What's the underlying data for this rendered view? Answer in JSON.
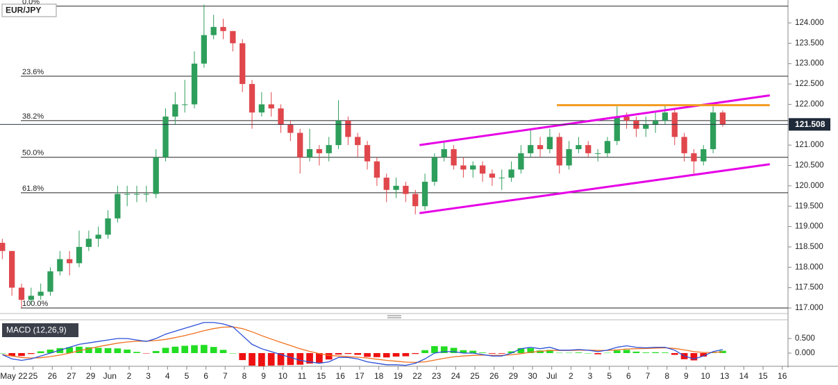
{
  "chart_data": [
    {
      "type": "candlestick",
      "title": "EUR/JPY",
      "x": [
        -0.6,
        -0.1,
        0.4,
        0.9,
        1.4,
        1.9,
        2.4,
        2.9,
        3.4,
        3.9,
        4.4,
        4.9,
        5.4,
        5.9,
        6.4,
        6.9,
        7.4,
        7.9,
        8.4,
        8.9,
        9.4,
        9.9,
        10.4,
        10.9,
        11.4,
        11.9,
        12.4,
        12.9,
        13.4,
        13.9,
        14.4,
        14.9,
        15.4,
        15.9,
        16.4,
        16.9,
        17.4,
        17.9,
        18.4,
        18.9,
        19.4,
        19.9,
        20.4,
        20.9,
        21.4,
        21.9,
        22.4,
        22.9,
        23.4,
        23.9,
        24.4,
        24.9,
        25.4,
        25.9,
        26.4,
        26.9,
        27.4,
        27.9,
        28.4,
        28.9,
        29.4,
        29.9,
        30.4,
        30.9,
        31.4,
        31.9,
        32.4,
        32.9,
        33.4,
        33.9,
        34.4,
        34.9,
        35.4,
        35.9,
        36.4,
        36.9
      ],
      "open": [
        118.6,
        118.4,
        117.5,
        117.2,
        117.3,
        117.4,
        117.9,
        118.2,
        118.1,
        118.5,
        118.7,
        118.8,
        119.2,
        119.8,
        119.8,
        119.8,
        119.8,
        120.7,
        121.7,
        122.0,
        122.0,
        123.0,
        123.7,
        123.9,
        123.8,
        123.5,
        122.5,
        121.8,
        122.0,
        121.9,
        121.5,
        121.3,
        120.7,
        120.9,
        120.8,
        121.0,
        121.6,
        121.2,
        121.0,
        120.6,
        120.2,
        119.9,
        120.0,
        119.8,
        119.5,
        120.1,
        120.7,
        120.9,
        120.5,
        120.4,
        120.5,
        120.3,
        120.2,
        120.2,
        120.4,
        120.8,
        121.0,
        120.9,
        121.2,
        120.5,
        120.9,
        121.0,
        120.8,
        120.8,
        121.1,
        121.7,
        121.6,
        121.4,
        121.5,
        121.6,
        121.8,
        121.2,
        120.8,
        120.6,
        120.9,
        121.8
      ],
      "high": [
        118.7,
        118.4,
        117.6,
        117.5,
        117.6,
        118.0,
        118.4,
        118.4,
        118.9,
        118.9,
        119.0,
        119.4,
        120.0,
        120.0,
        120.0,
        120.0,
        120.9,
        121.9,
        122.3,
        122.6,
        123.3,
        124.45,
        124.2,
        124.1,
        123.8,
        123.6,
        122.6,
        122.3,
        122.3,
        122.0,
        121.6,
        121.4,
        121.4,
        121.0,
        121.2,
        122.1,
        121.7,
        121.3,
        121.1,
        120.7,
        120.3,
        120.2,
        120.1,
        119.9,
        120.3,
        120.8,
        121.1,
        121.0,
        120.7,
        120.6,
        120.6,
        120.4,
        120.4,
        120.6,
        121.0,
        121.4,
        121.2,
        121.4,
        121.3,
        121.1,
        121.2,
        121.1,
        120.9,
        121.2,
        121.95,
        121.8,
        121.7,
        121.7,
        121.8,
        121.98,
        121.9,
        121.3,
        120.9,
        121.0,
        121.95,
        121.85
      ],
      "low": [
        118.2,
        117.3,
        117.0,
        117.1,
        117.2,
        117.3,
        117.8,
        117.8,
        118.0,
        118.4,
        118.5,
        118.7,
        119.1,
        119.5,
        119.6,
        119.6,
        119.7,
        120.6,
        121.5,
        121.8,
        121.9,
        122.9,
        123.6,
        123.6,
        123.3,
        122.3,
        121.4,
        121.7,
        121.7,
        121.3,
        121.1,
        120.3,
        120.6,
        120.5,
        120.6,
        120.9,
        121.0,
        120.7,
        120.4,
        120.0,
        119.6,
        119.7,
        119.6,
        119.3,
        119.4,
        120.0,
        120.6,
        120.4,
        120.2,
        120.2,
        120.1,
        120.0,
        119.9,
        120.1,
        120.3,
        120.7,
        120.7,
        120.8,
        120.3,
        120.4,
        120.8,
        120.7,
        120.6,
        120.7,
        121.0,
        121.4,
        121.2,
        121.2,
        121.3,
        121.5,
        121.0,
        120.6,
        120.3,
        120.5,
        120.8,
        121.45
      ],
      "close": [
        118.4,
        117.5,
        117.2,
        117.3,
        117.4,
        117.9,
        118.2,
        118.1,
        118.5,
        118.7,
        118.8,
        119.2,
        119.8,
        119.8,
        119.8,
        119.8,
        120.7,
        121.7,
        122.0,
        122.0,
        123.0,
        123.7,
        123.9,
        123.8,
        123.5,
        122.5,
        121.8,
        122.0,
        121.9,
        121.5,
        121.3,
        120.7,
        120.9,
        120.8,
        121.0,
        121.6,
        121.2,
        121.0,
        120.6,
        120.2,
        119.9,
        120.0,
        119.8,
        119.5,
        120.1,
        120.7,
        120.9,
        120.5,
        120.4,
        120.5,
        120.3,
        120.2,
        120.2,
        120.4,
        120.8,
        121.0,
        120.9,
        121.2,
        120.5,
        120.9,
        121.0,
        120.8,
        120.8,
        121.1,
        121.7,
        121.6,
        121.4,
        121.5,
        121.6,
        121.8,
        121.2,
        120.8,
        120.6,
        120.9,
        121.8,
        121.508
      ],
      "up_color": "#2e9e5b",
      "down_color": "#e0474c",
      "xlim": [
        -0.72,
        40.3
      ],
      "xticks": [
        {
          "value": 0,
          "label": "May 22"
        },
        {
          "value": 1,
          "label": "25"
        },
        {
          "value": 2,
          "label": "26"
        },
        {
          "value": 3,
          "label": "27"
        },
        {
          "value": 4,
          "label": "29"
        },
        {
          "value": 5,
          "label": "Jun"
        },
        {
          "value": 6,
          "label": "2"
        },
        {
          "value": 7,
          "label": "3"
        },
        {
          "value": 8,
          "label": "4"
        },
        {
          "value": 9,
          "label": "5"
        },
        {
          "value": 10,
          "label": "6"
        },
        {
          "value": 11,
          "label": "7"
        },
        {
          "value": 12,
          "label": "8"
        },
        {
          "value": 13,
          "label": "9"
        },
        {
          "value": 14,
          "label": "10"
        },
        {
          "value": 15,
          "label": "11"
        },
        {
          "value": 16,
          "label": "15"
        },
        {
          "value": 17,
          "label": "16"
        },
        {
          "value": 18,
          "label": "17"
        },
        {
          "value": 19,
          "label": "18"
        },
        {
          "value": 20,
          "label": "19"
        },
        {
          "value": 21,
          "label": "22"
        },
        {
          "value": 22,
          "label": "23"
        },
        {
          "value": 23,
          "label": "24"
        },
        {
          "value": 24,
          "label": "25"
        },
        {
          "value": 25,
          "label": "26"
        },
        {
          "value": 26,
          "label": "29"
        },
        {
          "value": 27,
          "label": "30"
        },
        {
          "value": 28,
          "label": "Jul"
        },
        {
          "value": 29,
          "label": "2"
        },
        {
          "value": 30,
          "label": "3"
        },
        {
          "value": 31,
          "label": "5"
        },
        {
          "value": 32,
          "label": "6"
        },
        {
          "value": 33,
          "label": "7"
        },
        {
          "value": 34,
          "label": "8"
        },
        {
          "value": 35,
          "label": "9"
        },
        {
          "value": 36,
          "label": "10"
        },
        {
          "value": 37,
          "label": "13"
        },
        {
          "value": 38,
          "label": "14"
        },
        {
          "value": 39,
          "label": "15"
        },
        {
          "value": 40,
          "label": "16"
        }
      ],
      "ylim": [
        116.864,
        124.562
      ],
      "yticks": [
        {
          "value": 117,
          "label": "117.000"
        },
        {
          "value": 117.5,
          "label": "117.500"
        },
        {
          "value": 118,
          "label": "118.000"
        },
        {
          "value": 118.5,
          "label": "118.500"
        },
        {
          "value": 119,
          "label": "119.000"
        },
        {
          "value": 119.5,
          "label": "119.500"
        },
        {
          "value": 120,
          "label": "120.000"
        },
        {
          "value": 120.5,
          "label": "120.500"
        },
        {
          "value": 121,
          "label": "121.000"
        },
        {
          "value": 121.5,
          "label": "121.500"
        },
        {
          "value": 122,
          "label": "122.000"
        },
        {
          "value": 122.5,
          "label": "122.500"
        },
        {
          "value": 123,
          "label": "123.000"
        },
        {
          "value": 123.5,
          "label": "123.500"
        },
        {
          "value": 124,
          "label": "124.000"
        }
      ],
      "fibonacci": [
        {
          "value": 124.41,
          "label": "0.0%"
        },
        {
          "value": 122.69,
          "label": "23.6%"
        },
        {
          "value": 121.6,
          "label": "38.2%"
        },
        {
          "value": 120.7,
          "label": "50.0%"
        },
        {
          "value": 119.83,
          "label": "61.8%"
        },
        {
          "value": 117.0,
          "label": "100.0%"
        }
      ],
      "trendlines": [
        {
          "color": "#e600e6",
          "x": [
            21.12,
            39.35
          ],
          "y": [
            121.0,
            122.22
          ]
        },
        {
          "color": "#e600e6",
          "x": [
            21.12,
            39.35
          ],
          "y": [
            119.33,
            120.53
          ]
        },
        {
          "color": "#f29a1f",
          "x": [
            28.27,
            39.35
          ],
          "y": [
            121.98,
            121.98
          ]
        }
      ]
    },
    {
      "type": "macd",
      "title": "MACD (12,26,9)",
      "ylim": [
        -0.429,
        1.119
      ],
      "yticks": [
        {
          "value": 0.5,
          "label": "0.500"
        },
        {
          "value": 0,
          "label": "0.000"
        }
      ],
      "macd": {
        "color": "#2b4fd8",
        "values": [
          -0.05,
          -0.2,
          -0.25,
          -0.2,
          -0.1,
          0,
          0.1,
          0.2,
          0.3,
          0.35,
          0.4,
          0.45,
          0.5,
          0.5,
          0.45,
          0.4,
          0.5,
          0.65,
          0.75,
          0.85,
          0.95,
          1.05,
          1.05,
          1.0,
          0.9,
          0.6,
          0.3,
          0.15,
          0.05,
          -0.05,
          -0.15,
          -0.25,
          -0.3,
          -0.35,
          -0.3,
          -0.15,
          -0.15,
          -0.2,
          -0.3,
          -0.35,
          -0.4,
          -0.4,
          -0.42,
          -0.35,
          -0.2,
          0,
          0.05,
          0.05,
          0,
          0,
          -0.05,
          -0.1,
          -0.1,
          0,
          0.15,
          0.2,
          0.15,
          0.2,
          0.1,
          0.1,
          0.12,
          0.1,
          0.05,
          0.1,
          0.2,
          0.25,
          0.2,
          0.18,
          0.2,
          0.2,
          0.1,
          -0.1,
          -0.2,
          -0.1,
          0.05,
          0.12
        ]
      },
      "signal": {
        "color": "#f0701e",
        "values": [
          -0.05,
          -0.1,
          -0.15,
          -0.17,
          -0.16,
          -0.12,
          -0.07,
          0,
          0.08,
          0.15,
          0.22,
          0.28,
          0.34,
          0.38,
          0.41,
          0.41,
          0.43,
          0.47,
          0.53,
          0.6,
          0.68,
          0.77,
          0.84,
          0.89,
          0.9,
          0.84,
          0.73,
          0.6,
          0.48,
          0.37,
          0.26,
          0.15,
          0.06,
          -0.02,
          -0.08,
          -0.1,
          -0.12,
          -0.14,
          -0.17,
          -0.21,
          -0.25,
          -0.28,
          -0.31,
          -0.32,
          -0.3,
          -0.24,
          -0.18,
          -0.13,
          -0.1,
          -0.08,
          -0.07,
          -0.08,
          -0.08,
          -0.06,
          -0.02,
          0.03,
          0.06,
          0.09,
          0.09,
          0.09,
          0.1,
          0.1,
          0.09,
          0.09,
          0.11,
          0.14,
          0.15,
          0.16,
          0.17,
          0.18,
          0.16,
          0.11,
          0.05,
          0.02,
          0.02,
          0.04
        ]
      },
      "histogram": {
        "up_color": "#22dd22",
        "down_color": "#ee1111",
        "values": [
          0,
          -0.1,
          -0.1,
          -0.03,
          0.06,
          0.12,
          0.17,
          0.2,
          0.22,
          0.2,
          0.18,
          0.17,
          0.16,
          0.12,
          0.04,
          -0.01,
          0.07,
          0.18,
          0.22,
          0.25,
          0.27,
          0.28,
          0.21,
          0.11,
          0,
          -0.24,
          -0.43,
          -0.45,
          -0.43,
          -0.42,
          -0.41,
          -0.4,
          -0.36,
          -0.33,
          -0.22,
          -0.05,
          -0.03,
          -0.06,
          -0.13,
          -0.14,
          -0.15,
          -0.12,
          -0.11,
          -0.03,
          0.1,
          0.24,
          0.23,
          0.18,
          0.1,
          0.08,
          0.02,
          -0.02,
          -0.02,
          0.06,
          0.17,
          0.17,
          0.09,
          0.11,
          0.01,
          0.01,
          0.02,
          0,
          -0.04,
          0.01,
          0.09,
          0.11,
          0.05,
          0.02,
          0.03,
          0.02,
          -0.06,
          -0.21,
          -0.25,
          -0.12,
          0.03,
          0.08
        ]
      }
    }
  ]
}
